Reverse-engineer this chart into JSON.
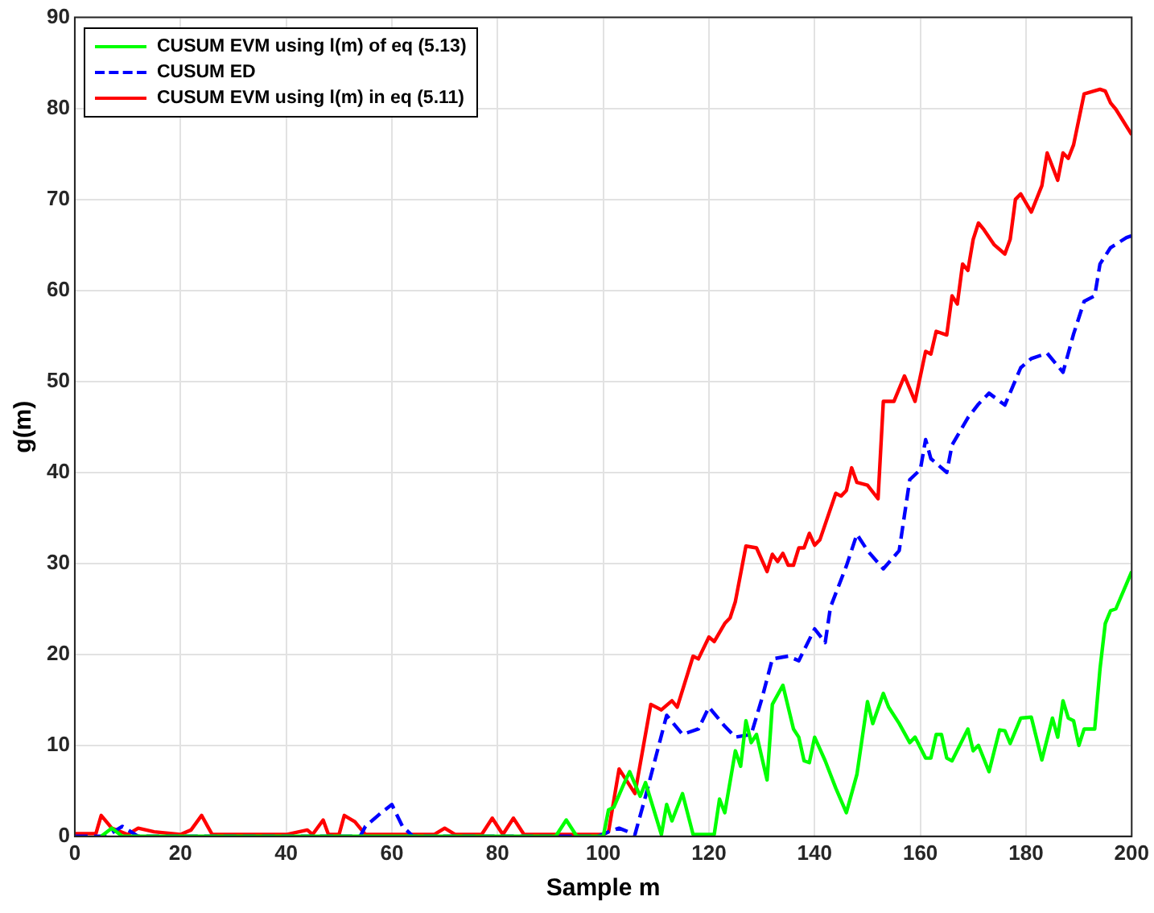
{
  "chart_data": {
    "type": "line",
    "xlabel": "Sample m",
    "ylabel": "g(m)",
    "xlim": [
      0,
      200
    ],
    "xticks": [
      0,
      20,
      40,
      60,
      80,
      100,
      120,
      140,
      160,
      180,
      200
    ],
    "ylim": [
      0,
      90
    ],
    "yticks": [
      0,
      10,
      20,
      30,
      40,
      50,
      60,
      70,
      80,
      90
    ],
    "grid": true,
    "legend": "top left",
    "marker": "none",
    "series": [
      {
        "name": "CUSUM EVM using l(m) of eq (5.13)",
        "color": "#00ff00",
        "line_style": "solid",
        "x": [
          5,
          7,
          9,
          20,
          40,
          60,
          80,
          91,
          93,
          95,
          100,
          101,
          102,
          104,
          105,
          107,
          108,
          111,
          112,
          113,
          115,
          117,
          121,
          122,
          123,
          125,
          126,
          127,
          128,
          129,
          131,
          132,
          134,
          136,
          137,
          138,
          139,
          140,
          142,
          144,
          146,
          148,
          150,
          151,
          153,
          154,
          156,
          158,
          159,
          161,
          162,
          163,
          164,
          165,
          166,
          169,
          170,
          171,
          173,
          175,
          176,
          177,
          179,
          181,
          183,
          185,
          186,
          187,
          188,
          189,
          190,
          191,
          193,
          194,
          195,
          196,
          197,
          200
        ],
        "values": [
          0,
          0.9,
          0,
          0,
          0,
          0,
          0,
          0,
          1.8,
          0,
          0,
          2.9,
          3.2,
          5.9,
          7.1,
          4.4,
          5.9,
          0.2,
          3.5,
          1.7,
          4.7,
          0.2,
          0.2,
          4.1,
          2.6,
          9.4,
          7.7,
          12.7,
          10.3,
          11.2,
          6.2,
          14.5,
          16.6,
          11.8,
          10.9,
          8.3,
          8.1,
          10.9,
          8.3,
          5.3,
          2.6,
          6.8,
          14.8,
          12.4,
          15.7,
          14.2,
          12.4,
          10.3,
          10.9,
          8.6,
          8.6,
          11.2,
          11.2,
          8.6,
          8.3,
          11.8,
          9.4,
          10,
          7.1,
          11.7,
          11.6,
          10.2,
          13,
          13.1,
          8.4,
          13,
          10.9,
          14.9,
          13,
          12.7,
          10,
          11.8,
          11.8,
          18.4,
          23.4,
          24.8,
          25,
          29.1
        ]
      },
      {
        "name": "CUSUM ED",
        "color": "#0000ff",
        "line_style": "dashed",
        "x": [
          0,
          6,
          9,
          12,
          40,
          54,
          55,
          58,
          60,
          62,
          64,
          80,
          99,
          101,
          103,
          106,
          108,
          112,
          115,
          118,
          120,
          123,
          125,
          128,
          130,
          132,
          135,
          137,
          140,
          142,
          143,
          146,
          148,
          150,
          153,
          156,
          158,
          160,
          161,
          162,
          165,
          166,
          169,
          171,
          173,
          176,
          179,
          181,
          184,
          187,
          189,
          191,
          193,
          194,
          196,
          199,
          200
        ],
        "values": [
          0,
          0,
          1.1,
          0,
          0,
          0,
          1.1,
          2.6,
          3.5,
          1.1,
          0,
          0,
          0,
          0.5,
          0.9,
          0.2,
          4.4,
          13.3,
          11.2,
          11.8,
          14.2,
          12.1,
          10.9,
          11.2,
          15.1,
          19.5,
          19.8,
          19.3,
          22.8,
          21.3,
          25.2,
          29.7,
          33.2,
          31.4,
          29.4,
          31.4,
          39.2,
          40.3,
          43.6,
          41.5,
          40,
          43,
          46,
          47.5,
          48.7,
          47.4,
          51.5,
          52.5,
          53.1,
          51,
          55.2,
          58.8,
          59.4,
          62.9,
          64.7,
          65.8,
          66
        ]
      },
      {
        "name": "CUSUM EVM using l(m) in eq (5.11)",
        "color": "#ff0000",
        "line_style": "solid",
        "x": [
          0,
          4,
          5,
          7,
          10,
          12,
          15,
          20,
          22,
          24,
          26,
          40,
          44,
          45,
          47,
          48,
          50,
          51,
          53,
          55,
          57,
          68,
          70,
          72,
          77,
          79,
          81,
          83,
          85,
          100,
          101,
          103,
          106,
          109,
          111,
          113,
          114,
          117,
          118,
          120,
          121,
          123,
          124,
          125,
          127,
          129,
          131,
          132,
          133,
          134,
          135,
          136,
          137,
          138,
          139,
          140,
          141,
          144,
          145,
          146,
          147,
          148,
          150,
          152,
          153,
          155,
          157,
          159,
          161,
          162,
          163,
          165,
          166,
          167,
          168,
          169,
          170,
          171,
          172,
          174,
          176,
          177,
          178,
          179,
          181,
          183,
          184,
          186,
          187,
          188,
          189,
          191,
          194,
          195,
          196,
          197,
          200
        ],
        "values": [
          0.3,
          0.3,
          2.3,
          0.9,
          0.2,
          0.9,
          0.5,
          0.2,
          0.7,
          2.3,
          0.2,
          0.2,
          0.7,
          0.2,
          1.8,
          0.2,
          0.2,
          2.3,
          1.6,
          0.2,
          0.2,
          0.2,
          0.9,
          0.2,
          0.2,
          2,
          0.2,
          2,
          0.2,
          0.2,
          0.5,
          7.4,
          4.7,
          14.5,
          13.9,
          14.9,
          14.2,
          19.8,
          19.5,
          21.9,
          21.4,
          23.4,
          24,
          25.8,
          31.9,
          31.7,
          29.1,
          31,
          30.2,
          31.1,
          29.8,
          29.8,
          31.7,
          31.7,
          33.3,
          32,
          32.6,
          37.7,
          37.4,
          38,
          40.5,
          38.9,
          38.6,
          37.1,
          47.8,
          47.8,
          50.6,
          47.8,
          53.3,
          53,
          55.5,
          55.1,
          59.4,
          58.5,
          62.9,
          62.2,
          65.6,
          67.4,
          66.7,
          65,
          64,
          65.6,
          70,
          70.6,
          68.6,
          71.5,
          75.1,
          72.1,
          75.1,
          74.5,
          76,
          81.6,
          82.1,
          81.9,
          80.6,
          79.9,
          77.1
        ]
      }
    ]
  }
}
